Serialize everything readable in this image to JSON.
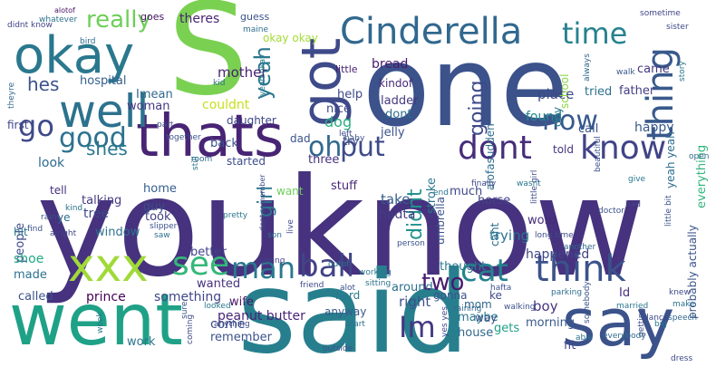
{
  "words": [
    {
      "text": "youknow",
      "color": "#46327e"
    },
    {
      "text": "said",
      "color": "#277f8e"
    },
    {
      "text": "one",
      "color": "#3b528b"
    },
    {
      "text": "S",
      "color": "#7ad151"
    },
    {
      "text": "say",
      "color": "#3b528b"
    },
    {
      "text": "went",
      "color": "#1fa187"
    },
    {
      "text": "thats",
      "color": "#482475"
    },
    {
      "text": "okay",
      "color": "#2a788e"
    },
    {
      "text": "got",
      "color": "#3e4a89"
    },
    {
      "text": "Cinderella",
      "color": "#31688e"
    },
    {
      "text": "time",
      "color": "#26828e"
    },
    {
      "text": "well",
      "color": "#2c728e"
    },
    {
      "text": "xxx",
      "color": "#a0da39"
    },
    {
      "text": "dont",
      "color": "#472d7b"
    },
    {
      "text": "know",
      "color": "#414487"
    },
    {
      "text": "think",
      "color": "#3b528b"
    },
    {
      "text": "thing",
      "color": "#38598c"
    },
    {
      "text": "ball",
      "color": "#414487"
    },
    {
      "text": "cat",
      "color": "#25838e"
    },
    {
      "text": "man",
      "color": "#2a788e"
    },
    {
      "text": "see",
      "color": "#35b779"
    },
    {
      "text": "go",
      "color": "#3e4a89"
    },
    {
      "text": "good",
      "color": "#2c728e"
    },
    {
      "text": "oh",
      "color": "#31688e"
    },
    {
      "text": "put",
      "color": "#3e4a89"
    },
    {
      "text": "now",
      "color": "#38598c"
    },
    {
      "text": "Im",
      "color": "#443983"
    },
    {
      "text": "two",
      "color": "#481b6d"
    },
    {
      "text": "really",
      "color": "#6ece58"
    },
    {
      "text": "hes",
      "color": "#3b528b"
    },
    {
      "text": "yeah",
      "color": "#2a788e"
    },
    {
      "text": "going",
      "color": "#3e4a89"
    },
    {
      "text": "didnt",
      "color": "#21918c"
    },
    {
      "text": "girl",
      "color": "#2a788e"
    },
    {
      "text": "shes",
      "color": "#2a788e"
    },
    {
      "text": "mother",
      "color": "#481f70"
    },
    {
      "text": "theres",
      "color": "#482475"
    },
    {
      "text": "came",
      "color": "#453781"
    },
    {
      "text": "father",
      "color": "#433e85"
    },
    {
      "text": "place",
      "color": "#3e4989"
    },
    {
      "text": "bread",
      "color": "#481a6c"
    },
    {
      "text": "ladder",
      "color": "#44397f"
    },
    {
      "text": "kindof",
      "color": "#482878"
    },
    {
      "text": "found",
      "color": "#23888e"
    },
    {
      "text": "dont",
      "color": "#2e6e8e"
    },
    {
      "text": "jelly",
      "color": "#3b528b"
    },
    {
      "text": "help",
      "color": "#3e4989"
    },
    {
      "text": "hospital",
      "color": "#355f8d"
    },
    {
      "text": "Imean",
      "color": "#31688e"
    },
    {
      "text": "woman",
      "color": "#453882"
    },
    {
      "text": "couldnt",
      "color": "#c8e020"
    },
    {
      "text": "daughter",
      "color": "#404688"
    },
    {
      "text": "little",
      "color": "#482173"
    },
    {
      "text": "started",
      "color": "#3d4d8a"
    },
    {
      "text": "nice",
      "color": "#3f4889"
    },
    {
      "text": "dog",
      "color": "#29af7f"
    },
    {
      "text": "dad",
      "color": "#3b528b"
    },
    {
      "text": "try",
      "color": "#3e4a89"
    },
    {
      "text": "three",
      "color": "#46327e"
    },
    {
      "text": "stuff",
      "color": "#482878"
    },
    {
      "text": "take",
      "color": "#365c8d"
    },
    {
      "text": "hadta",
      "color": "#433d84"
    },
    {
      "text": "much",
      "color": "#3f4889"
    },
    {
      "text": "trying",
      "color": "#2c738e"
    },
    {
      "text": "word",
      "color": "#472c7a"
    },
    {
      "text": "happened",
      "color": "#404588"
    },
    {
      "text": "everything",
      "color": "#31b57b"
    },
    {
      "text": "happy",
      "color": "#38598c"
    },
    {
      "text": "told",
      "color": "#453581"
    },
    {
      "text": "call",
      "color": "#3a548c"
    },
    {
      "text": "school",
      "color": "#8bd646"
    },
    {
      "text": "tried",
      "color": "#2c718e"
    },
    {
      "text": "day",
      "color": "#2a768e"
    },
    {
      "text": "yeah yeah",
      "color": "#2e6d8e"
    },
    {
      "text": "look",
      "color": "#2f6b8e"
    },
    {
      "text": "people",
      "color": "#3e4989"
    },
    {
      "text": "talking",
      "color": "#453882"
    },
    {
      "text": "guy",
      "color": "#3c508b"
    },
    {
      "text": "home",
      "color": "#355e8d"
    },
    {
      "text": "took",
      "color": "#433e85"
    },
    {
      "text": "tree",
      "color": "#3e4a89"
    },
    {
      "text": "window",
      "color": "#2e6e8e"
    },
    {
      "text": "shoe",
      "color": "#22a884"
    },
    {
      "text": "made",
      "color": "#2c728e"
    },
    {
      "text": "called",
      "color": "#3b528b"
    },
    {
      "text": "prince",
      "color": "#440154"
    },
    {
      "text": "something",
      "color": "#3f4788"
    },
    {
      "text": "wanted",
      "color": "#46337f"
    },
    {
      "text": "wife",
      "color": "#481769"
    },
    {
      "text": "come",
      "color": "#3e4c8a"
    },
    {
      "text": "remember",
      "color": "#3b528b"
    },
    {
      "text": "work",
      "color": "#2b758e"
    },
    {
      "text": "better",
      "color": "#414287"
    },
    {
      "text": "peanut butter",
      "color": "#482576"
    },
    {
      "text": "right",
      "color": "#3b518b"
    },
    {
      "text": "around",
      "color": "#2c728e"
    },
    {
      "text": "gonna",
      "color": "#3b528b"
    },
    {
      "text": "maybe",
      "color": "#2a788e"
    },
    {
      "text": "boy",
      "color": "#453581"
    },
    {
      "text": "house",
      "color": "#31688e"
    },
    {
      "text": "gets",
      "color": "#1fa088"
    },
    {
      "text": "morning",
      "color": "#38598c"
    },
    {
      "text": "fit",
      "color": "#3f4788"
    },
    {
      "text": "Id",
      "color": "#472d7b"
    },
    {
      "text": "probably actually",
      "color": "#3b528b"
    },
    {
      "text": "ke",
      "color": "#3e4a89"
    },
    {
      "text": "horse",
      "color": "#414487"
    },
    {
      "text": "alofasudden",
      "color": "#2e6e8e"
    },
    {
      "text": "cant",
      "color": "#2d708e"
    },
    {
      "text": "thought",
      "color": "#2a788e"
    },
    {
      "text": "umbrella",
      "color": "#3b528b"
    },
    {
      "text": "stroke",
      "color": "#2a788e"
    },
    {
      "text": "back",
      "color": "#3b528b"
    },
    {
      "text": "want",
      "color": "#6ccd5a"
    },
    {
      "text": "hit",
      "color": "#2a788e"
    },
    {
      "text": "first",
      "color": "#3f4889"
    },
    {
      "text": "tell",
      "color": "#46327e"
    },
    {
      "text": "ye",
      "color": "#2e6e8e"
    },
    {
      "text": "anyway",
      "color": "#38598c"
    },
    {
      "text": "hard",
      "color": "#2a788e"
    },
    {
      "text": "mom",
      "color": "#31688e"
    },
    {
      "text": "way",
      "color": "#3b528b"
    },
    {
      "text": "goes",
      "color": "#471365"
    },
    {
      "text": "guess",
      "color": "#3b528b"
    },
    {
      "text": "okay okay",
      "color": "#a5db36"
    },
    {
      "text": "bird",
      "color": "#2d708e"
    },
    {
      "text": "whatever",
      "color": "#2c728e"
    },
    {
      "text": "alotof",
      "color": "#471063"
    },
    {
      "text": "didnt know",
      "color": "#414487"
    },
    {
      "text": "theyre",
      "color": "#31688e"
    },
    {
      "text": "rain",
      "color": "#3b528b"
    },
    {
      "text": "part",
      "color": "#3e4a89"
    },
    {
      "text": "together",
      "color": "#3b528b"
    },
    {
      "text": "kid",
      "color": "#2c728e"
    },
    {
      "text": "walk",
      "color": "#38598c"
    },
    {
      "text": "sister",
      "color": "#3e4a89"
    },
    {
      "text": "sometime",
      "color": "#414487"
    },
    {
      "text": "always",
      "color": "#31688e"
    },
    {
      "text": "story",
      "color": "#2a788e"
    },
    {
      "text": "maine",
      "color": "#2e6e8e"
    },
    {
      "text": "yeah okay",
      "color": "#2a788e"
    },
    {
      "text": "end",
      "color": "#2c728e"
    },
    {
      "text": "beautiful",
      "color": "#3b528b"
    },
    {
      "text": "little girl",
      "color": "#3e4a89"
    },
    {
      "text": "open",
      "color": "#31688e"
    },
    {
      "text": "little bit",
      "color": "#3b528b"
    },
    {
      "text": "finally",
      "color": "#3e4a89"
    },
    {
      "text": "give",
      "color": "#2a788e"
    },
    {
      "text": "bad",
      "color": "#414487"
    },
    {
      "text": "doctor",
      "color": "#3b528b"
    },
    {
      "text": "wasnt",
      "color": "#2a788e"
    },
    {
      "text": "long time",
      "color": "#3e4a89"
    },
    {
      "text": "another",
      "color": "#31688e"
    },
    {
      "text": "person",
      "color": "#3b528b"
    },
    {
      "text": "son",
      "color": "#2c728e"
    },
    {
      "text": "live",
      "color": "#3e4a89"
    },
    {
      "text": "dont remember",
      "color": "#3e4a89"
    },
    {
      "text": "pretty",
      "color": "#2a788e"
    },
    {
      "text": "slipper",
      "color": "#3b528b"
    },
    {
      "text": "saw",
      "color": "#2e6e8e"
    },
    {
      "text": "alright",
      "color": "#414487"
    },
    {
      "text": "find",
      "color": "#3b528b"
    },
    {
      "text": "kind",
      "color": "#2c728e"
    },
    {
      "text": "saying",
      "color": "#414487"
    },
    {
      "text": "outof",
      "color": "#2c728e"
    },
    {
      "text": "alot",
      "color": "#3b528b"
    },
    {
      "text": "friend",
      "color": "#3e4a89"
    },
    {
      "text": "working",
      "color": "#2a788e"
    },
    {
      "text": "sitting",
      "color": "#2c728e"
    },
    {
      "text": "raining",
      "color": "#31688e"
    },
    {
      "text": "hafta",
      "color": "#3b528b"
    },
    {
      "text": "parking",
      "color": "#2e6e8e"
    },
    {
      "text": "walking",
      "color": "#3b528b"
    },
    {
      "text": "married",
      "color": "#2a788e"
    },
    {
      "text": "dance",
      "color": "#3e4a89"
    },
    {
      "text": "speech",
      "color": "#31688e"
    },
    {
      "text": "knew",
      "color": "#3e4a89"
    },
    {
      "text": "make",
      "color": "#2c728e"
    },
    {
      "text": "somebody",
      "color": "#3b528b"
    },
    {
      "text": "big",
      "color": "#2a788e"
    },
    {
      "text": "getting",
      "color": "#3e4a89"
    },
    {
      "text": "yes yes",
      "color": "#3e4a89"
    },
    {
      "text": "able",
      "color": "#2c728e"
    },
    {
      "text": "everybody",
      "color": "#31688e"
    },
    {
      "text": "week",
      "color": "#2a788e"
    },
    {
      "text": "sure",
      "color": "#3b528b"
    },
    {
      "text": "coming",
      "color": "#3e4a89"
    },
    {
      "text": "looked",
      "color": "#2a788e"
    },
    {
      "text": "anything",
      "color": "#3e4a89"
    },
    {
      "text": "start",
      "color": "#2c728e"
    },
    {
      "text": "outside",
      "color": "#3b528b"
    },
    {
      "text": "dress",
      "color": "#3e4a89"
    },
    {
      "text": "still",
      "color": "#2a788e"
    },
    {
      "text": "room",
      "color": "#31688e"
    },
    {
      "text": "left",
      "color": "#3e4a89"
    },
    {
      "text": "baby",
      "color": "#3b528b"
    }
  ]
}
